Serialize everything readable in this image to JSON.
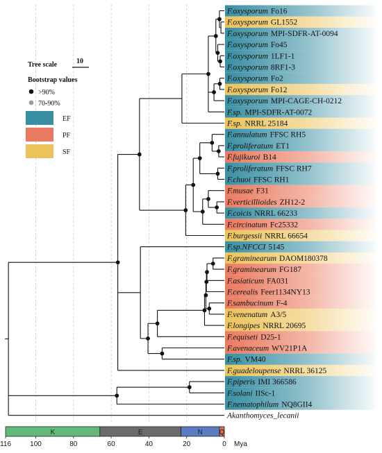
{
  "colors": {
    "EF": "#3a8fa3",
    "PF": "#ea7a5f",
    "SF": "#ecc35a"
  },
  "legend": {
    "tree_scale_label": "Tree scale",
    "tree_scale_value": "10",
    "bootstrap_title": "Bootstrap values",
    "bootstrap_high": ">90%",
    "bootstrap_mid": "70-90%",
    "groups": [
      "EF",
      "PF",
      "SF"
    ]
  },
  "taxa": [
    {
      "genus": "F.oxysporum",
      "strain": "Fo16",
      "group": "EF"
    },
    {
      "genus": "F.oxysporum",
      "strain": "GL1552",
      "group": "SF"
    },
    {
      "genus": "F.oxysporum",
      "strain": "MPI-SDFR-AT-0094",
      "group": "EF"
    },
    {
      "genus": "F.oxysporum",
      "strain": "Fo45",
      "group": "EF"
    },
    {
      "genus": "F.oxysporum",
      "strain": "1LF1-1",
      "group": "EF"
    },
    {
      "genus": "F.oxysporum",
      "strain": "8RF1-3",
      "group": "EF"
    },
    {
      "genus": "F.oxysporum",
      "strain": "Fo2",
      "group": "EF"
    },
    {
      "genus": "F.oxysporum",
      "strain": "Fo12",
      "group": "SF"
    },
    {
      "genus": "F.oxysporum",
      "strain": "MPI-CAGE-CH-0212",
      "group": "EF"
    },
    {
      "genus": "F.sp.",
      "strain": "MPI-SDFR-AT-0072",
      "group": "EF"
    },
    {
      "genus": "F.sp.",
      "strain": "NRRL 25184",
      "group": "SF"
    },
    {
      "genus": "F.annulatum",
      "strain": "FFSC RH5",
      "group": "EF"
    },
    {
      "genus": "F.proliferatum",
      "strain": "ET1",
      "group": "EF"
    },
    {
      "genus": "F.fujikuroi",
      "strain": "B14",
      "group": "PF"
    },
    {
      "genus": "F.proliferatum",
      "strain": "FFSC RH7",
      "group": "EF"
    },
    {
      "genus": "F.chuoi",
      "strain": "FFSC RH1",
      "group": "EF"
    },
    {
      "genus": "F.musae",
      "strain": "F31",
      "group": "PF"
    },
    {
      "genus": "F.verticillioides",
      "strain": "ZH12-2",
      "group": "PF"
    },
    {
      "genus": "F.coicis",
      "strain": "NRRL 66233",
      "group": "EF"
    },
    {
      "genus": "F.circinatum",
      "strain": "Fc25332",
      "group": "PF"
    },
    {
      "genus": "F.burgessii",
      "strain": "NRRL 66654",
      "group": "SF"
    },
    {
      "genus": "F.sp.NFCCI",
      "strain": "5145",
      "group": "EF"
    },
    {
      "genus": "F.graminearum",
      "strain": "DAOM180378",
      "group": "SF"
    },
    {
      "genus": "F.graminearum",
      "strain": "FG187",
      "group": "PF"
    },
    {
      "genus": "F.asiaticum",
      "strain": "FA031",
      "group": "PF"
    },
    {
      "genus": "F.cerealis",
      "strain": "Feer1134NY13",
      "group": "PF"
    },
    {
      "genus": "F.sambucinum",
      "strain": "F-4",
      "group": "PF"
    },
    {
      "genus": "F.venenatum",
      "strain": "A3/5",
      "group": "SF"
    },
    {
      "genus": "F.longipes",
      "strain": "NRRL 20695",
      "group": "SF"
    },
    {
      "genus": "F.equiseti",
      "strain": "D25-1",
      "group": "PF"
    },
    {
      "genus": "F.avenaceum",
      "strain": "WV21P1A",
      "group": "PF"
    },
    {
      "genus": "F.sp.",
      "strain": "VM40",
      "group": "EF"
    },
    {
      "genus": "F.guadeloupense",
      "strain": "NRRL 36125",
      "group": "SF"
    },
    {
      "genus": "F.piperis",
      "strain": "IMI 366586",
      "group": "EF"
    },
    {
      "genus": "F.solani",
      "strain": "IISc-1",
      "group": "EF"
    },
    {
      "genus": "F.nematophilum",
      "strain": "NQ8GII4",
      "group": "EF"
    },
    {
      "genus": "",
      "strain": "Akanthomyces_lecanii",
      "group": "none"
    }
  ],
  "time_axis": {
    "ticks": [
      "116",
      "100",
      "80",
      "60",
      "40",
      "20",
      "0"
    ],
    "unit": "Mya",
    "eras": [
      {
        "label": "K",
        "from": 116,
        "to": 66,
        "color": "#63b97a"
      },
      {
        "label": "E",
        "from": 66,
        "to": 23,
        "color": "#6b6b6b"
      },
      {
        "label": "N",
        "from": 23,
        "to": 2.6,
        "color": "#5b7cc0"
      },
      {
        "label": "Q",
        "from": 2.6,
        "to": 0,
        "color": "#e06a4e"
      }
    ]
  }
}
